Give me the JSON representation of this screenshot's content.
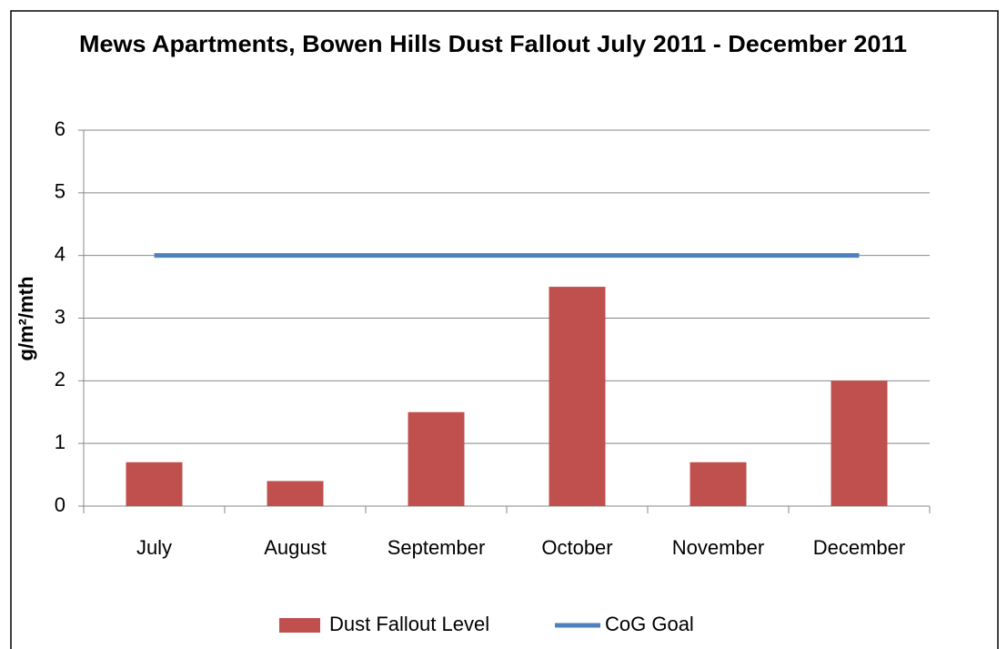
{
  "chart_data": {
    "type": "bar",
    "title": "Mews Apartments, Bowen Hills Dust Fallout July 2011 - December 2011",
    "y_label": "g/m²/mth",
    "categories": [
      "July",
      "August",
      "September",
      "October",
      "November",
      "December"
    ],
    "series": [
      {
        "name": "Dust Fallout Level",
        "type": "bar",
        "color": "#c0504d",
        "values": [
          0.7,
          0.4,
          1.5,
          3.5,
          0.7,
          2
        ]
      },
      {
        "name": "CoG Goal",
        "type": "line",
        "color": "#4f81bd",
        "values": [
          4,
          4,
          4,
          4,
          4,
          4
        ]
      }
    ],
    "ylim": [
      0,
      6
    ],
    "yticks": [
      0,
      1,
      2,
      3,
      4,
      5,
      6
    ],
    "grid": true,
    "legend": "bottom"
  }
}
